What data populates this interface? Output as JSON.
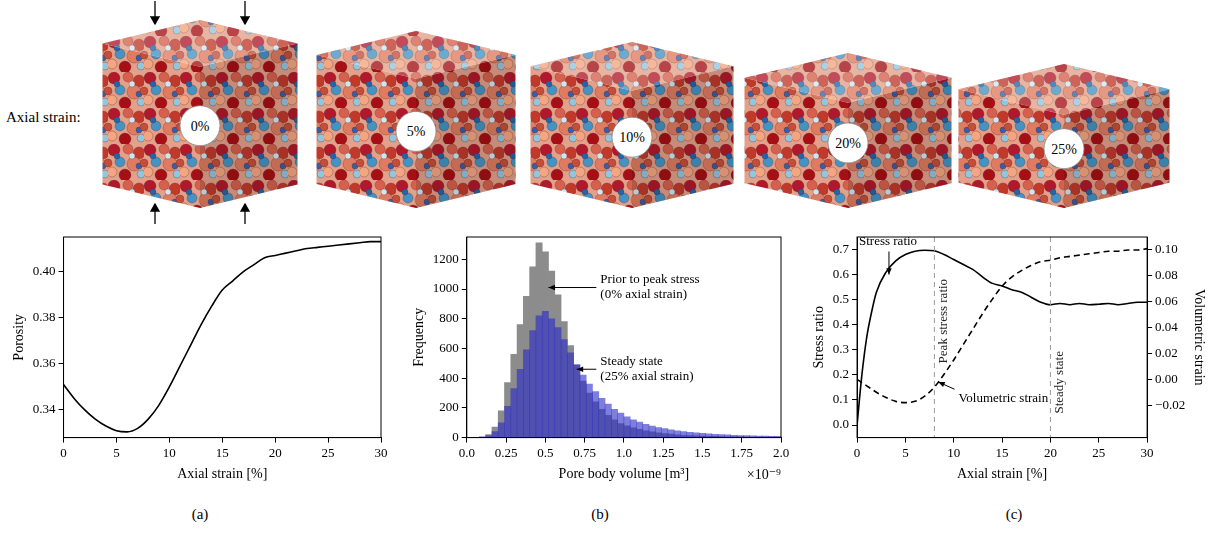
{
  "figure": {
    "row_label": "Axial strain:",
    "snapshots": [
      "0%",
      "5%",
      "10%",
      "20%",
      "25%"
    ]
  },
  "chart_data": [
    {
      "panel": "(a)",
      "type": "line",
      "x_label": "Axial strain [%]",
      "y_label": "Porosity",
      "x": [
        0,
        1,
        2,
        3,
        4,
        5,
        6,
        7,
        8,
        9,
        10,
        11,
        12,
        13,
        14,
        15,
        16,
        17,
        18,
        19,
        20,
        21,
        22,
        23,
        24,
        25,
        26,
        27,
        28,
        29,
        30
      ],
      "values": [
        0.351,
        0.345,
        0.34,
        0.336,
        0.333,
        0.331,
        0.3305,
        0.332,
        0.336,
        0.342,
        0.35,
        0.359,
        0.368,
        0.377,
        0.385,
        0.392,
        0.396,
        0.4,
        0.403,
        0.406,
        0.407,
        0.408,
        0.409,
        0.41,
        0.4105,
        0.411,
        0.4115,
        0.412,
        0.4125,
        0.413,
        0.413
      ],
      "color": "#000000",
      "line_style": "solid",
      "xlim": [
        0,
        30
      ],
      "xticks": [
        0,
        5,
        10,
        15,
        20,
        25,
        30
      ],
      "ylim": [
        0.328,
        0.415
      ],
      "yticks": [
        0.34,
        0.36,
        0.38,
        {
          "value": 0.4,
          "label": "0.40"
        }
      ],
      "grid": false
    },
    {
      "panel": "(b)",
      "type": "histogram",
      "x_label": "Pore body volume [m³]",
      "x_offset_label": "×10⁻⁹",
      "y_label": "Frequency",
      "bins": [
        0,
        0.04,
        0.08,
        0.12,
        0.16,
        0.2,
        0.24,
        0.28,
        0.32,
        0.36,
        0.4,
        0.44,
        0.48,
        0.52,
        0.56,
        0.6,
        0.64,
        0.68,
        0.72,
        0.76,
        0.8,
        0.84,
        0.88,
        0.92,
        0.96,
        1.0,
        1.04,
        1.08,
        1.12,
        1.16,
        1.2,
        1.24,
        1.28,
        1.32,
        1.36,
        1.4,
        1.44,
        1.48,
        1.52,
        1.56,
        1.6,
        1.64,
        1.68,
        1.72,
        1.76,
        1.8,
        1.84,
        1.88,
        1.92,
        1.96,
        2.0
      ],
      "series": [
        {
          "color": "#8c8c8c",
          "values": [
            0,
            0,
            5,
            20,
            70,
            180,
            370,
            560,
            760,
            950,
            1150,
            1310,
            1250,
            1120,
            960,
            780,
            620,
            490,
            380,
            300,
            240,
            190,
            150,
            120,
            95,
            80,
            65,
            55,
            45,
            38,
            32,
            27,
            23,
            19,
            16,
            14,
            12,
            10,
            9,
            8,
            7,
            6,
            5,
            5,
            4,
            4,
            3,
            3,
            2,
            2
          ]
        },
        {
          "color": "#2828c8",
          "values": [
            0,
            0,
            3,
            12,
            40,
            100,
            210,
            330,
            460,
            590,
            720,
            820,
            850,
            800,
            740,
            660,
            570,
            490,
            420,
            360,
            310,
            265,
            225,
            190,
            165,
            140,
            120,
            105,
            90,
            78,
            68,
            60,
            52,
            46,
            40,
            36,
            32,
            28,
            25,
            22,
            20,
            18,
            16,
            14,
            13,
            12,
            11,
            10,
            9,
            8
          ]
        }
      ],
      "annotations": [
        {
          "text": "Prior to peak stress\n(0% axial strain)",
          "x": 0.52,
          "y": 1010,
          "text_x": 0.85,
          "text_y": 1010
        },
        {
          "text": "Steady state\n(25% axial strain)",
          "x": 0.7,
          "y": 460,
          "text_x": 0.85,
          "text_y": 460
        }
      ],
      "xlim": [
        0,
        2.0
      ],
      "xticks": [
        {
          "value": 0,
          "label": "0.0"
        },
        0.25,
        0.5,
        0.75,
        {
          "value": 1,
          "label": "1.0"
        },
        1.25,
        1.5,
        1.75,
        {
          "value": 2,
          "label": "2.0"
        }
      ],
      "ylim": [
        0,
        1350
      ],
      "yticks": [
        0,
        200,
        400,
        600,
        800,
        1000,
        1200
      ],
      "grid": false
    },
    {
      "panel": "(c)",
      "type": "line",
      "x_label": "Axial strain [%]",
      "y_label": "Stress ratio",
      "y2_label": "Volumetric strain",
      "x": [
        0,
        0.5,
        1,
        1.5,
        2,
        3,
        4,
        5,
        6,
        7,
        8,
        9,
        10,
        11,
        12,
        13,
        14,
        15,
        16,
        17,
        18,
        19,
        20,
        21,
        22,
        23,
        24,
        25,
        26,
        27,
        28,
        29,
        30
      ],
      "series": [
        {
          "color": "#000000",
          "line_style": "solid",
          "values": [
            0,
            0.2,
            0.35,
            0.45,
            0.53,
            0.61,
            0.655,
            0.68,
            0.693,
            0.697,
            0.695,
            0.68,
            0.66,
            0.64,
            0.62,
            0.59,
            0.565,
            0.555,
            0.54,
            0.53,
            0.51,
            0.49,
            0.48,
            0.485,
            0.48,
            0.485,
            0.48,
            0.482,
            0.485,
            0.48,
            0.485,
            0.49,
            0.49
          ]
        },
        {
          "color": "#000000",
          "line_style": "dashed",
          "axis": "y2",
          "values": [
            0,
            -0.0025,
            -0.005,
            -0.0075,
            -0.01,
            -0.014,
            -0.017,
            -0.018,
            -0.017,
            -0.013,
            -0.006,
            0.004,
            0.015,
            0.027,
            0.039,
            0.051,
            0.062,
            0.072,
            0.079,
            0.084,
            0.088,
            0.091,
            0.092,
            0.094,
            0.095,
            0.096,
            0.097,
            0.098,
            0.099,
            0.099,
            0.1,
            0.1,
            0.101
          ]
        }
      ],
      "vlines": [
        {
          "x": 8,
          "label": "Peak stress ratio"
        },
        {
          "x": 20,
          "label": "Steady state"
        }
      ],
      "annotations": [
        {
          "text": "Stress ratio",
          "x": 3.3,
          "y": 0.6,
          "text_x": 0.2,
          "text_y": 0.73
        },
        {
          "text": "Volumetric strain",
          "axis": "y2",
          "x": 8.4,
          "y": -0.002,
          "text_x": 10.5,
          "text_y": -0.015
        }
      ],
      "xlim": [
        0,
        30
      ],
      "xticks": [
        0,
        5,
        10,
        15,
        20,
        25,
        30
      ],
      "ylim": [
        -0.05,
        0.75
      ],
      "yticks": [
        {
          "value": 0,
          "label": "0.0"
        },
        0.1,
        0.2,
        0.3,
        0.4,
        0.5,
        0.6,
        0.7
      ],
      "y2lim": [
        -0.045,
        0.11
      ],
      "y2ticks": [
        {
          "value": -0.02,
          "label": "−0.02"
        },
        {
          "value": 0,
          "label": "0.00"
        },
        0.02,
        0.04,
        0.06,
        0.08,
        {
          "value": 0.1,
          "label": "0.10"
        }
      ],
      "grid": false
    }
  ]
}
